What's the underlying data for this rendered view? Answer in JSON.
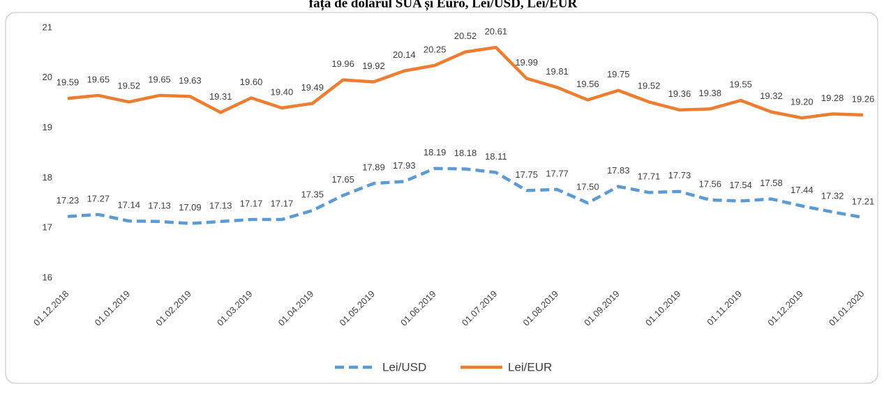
{
  "chart_data": {
    "type": "line",
    "title": "fața de dolarul SUA și Euro, Lei/USD, Lei/EUR",
    "categories": [
      "01.12.2018",
      null,
      "01.01.2019",
      null,
      "01.02.2019",
      null,
      "01.03.2019",
      null,
      "01.04.2019",
      null,
      "01.05.2019",
      null,
      "01.06.2019",
      null,
      "01.07.2019",
      null,
      "01.08.2019",
      null,
      "01.09.2019",
      null,
      "01.10.2019",
      null,
      "01.11.2019",
      null,
      "01.12.2019",
      null,
      "01.01.2020"
    ],
    "series": [
      {
        "name": "Lei/USD",
        "color": "#5b9bd5",
        "dashed": true,
        "values": [
          17.23,
          17.27,
          17.14,
          17.13,
          17.09,
          17.13,
          17.17,
          17.17,
          17.35,
          17.65,
          17.89,
          17.93,
          18.19,
          18.18,
          18.11,
          17.75,
          17.77,
          17.5,
          17.83,
          17.71,
          17.73,
          17.56,
          17.54,
          17.58,
          17.44,
          17.32,
          17.21
        ],
        "value_labels": [
          "17.23",
          "17.27",
          "17.14",
          "17.13",
          "17.09",
          "17.13",
          "17.17",
          "17.17",
          "17.35",
          "17.65",
          "17.89",
          "17.93",
          "18.19",
          "18.18",
          "18.11",
          "17.75",
          "17.77",
          "17.50",
          "17.83",
          "17.71",
          "17.73",
          "17.56",
          "17.54",
          "17.58",
          "17.44",
          "17.32",
          "17.21"
        ]
      },
      {
        "name": "Lei/EUR",
        "color": "#ed7d31",
        "dashed": false,
        "values": [
          19.59,
          19.65,
          19.52,
          19.65,
          19.63,
          19.31,
          19.6,
          19.4,
          19.49,
          19.96,
          19.92,
          20.14,
          20.25,
          20.52,
          20.61,
          19.99,
          19.81,
          19.56,
          19.75,
          19.52,
          19.36,
          19.38,
          19.55,
          19.32,
          19.2,
          19.28,
          19.26
        ],
        "value_labels": [
          "19.59",
          "19.65",
          "19.52",
          "19.65",
          "19.63",
          "19.31",
          "19.60",
          "19.40",
          "19.49",
          "19.96",
          "19.92",
          "20.14",
          "20.25",
          "20.52",
          "20.61",
          "19.99",
          "19.81",
          "19.56",
          "19.75",
          "19.52",
          "19.36",
          "19.38",
          "19.55",
          "19.32",
          "19.20",
          "19.28",
          "19.26"
        ]
      }
    ],
    "ylim": [
      16,
      21
    ],
    "yticks": [
      16,
      17,
      18,
      19,
      20,
      21
    ],
    "grid": false,
    "legend": "bottom"
  }
}
